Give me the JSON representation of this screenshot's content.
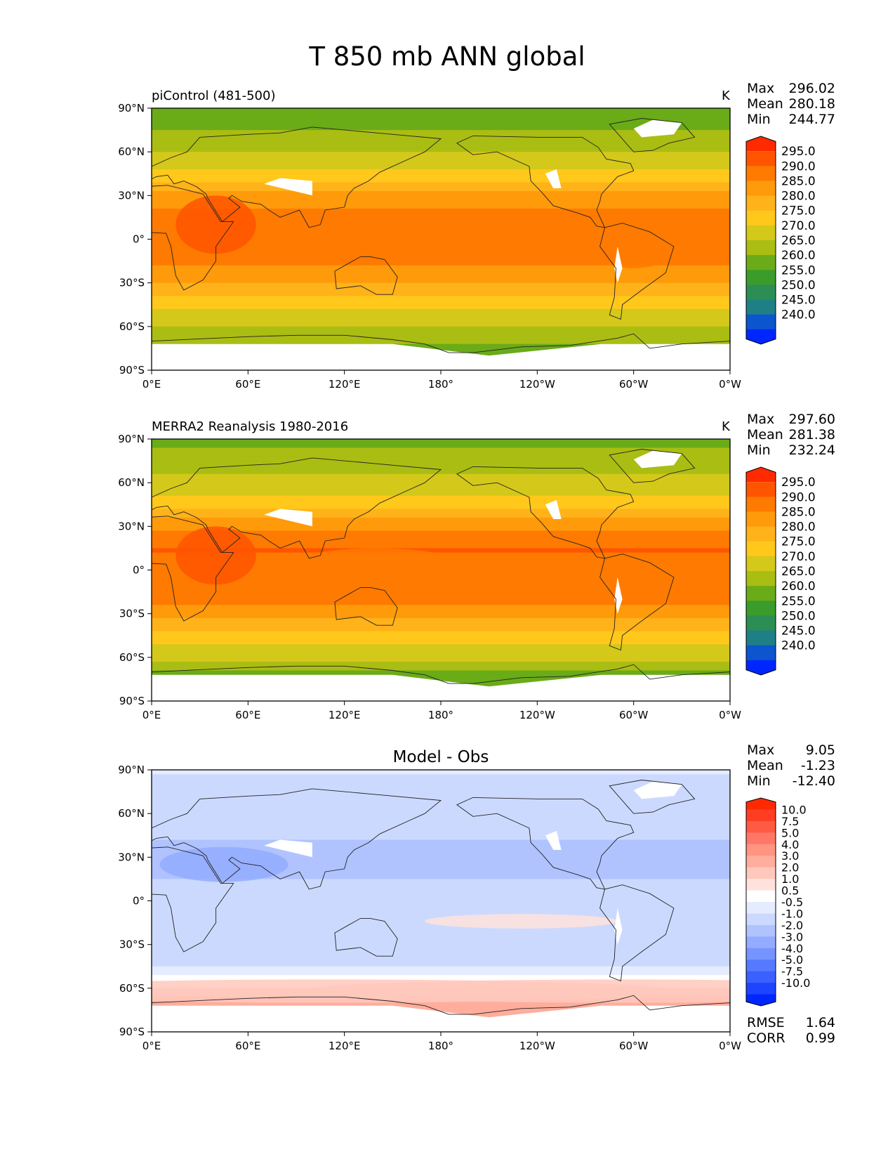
{
  "figure": {
    "title": "T 850 mb ANN global"
  },
  "axes": {
    "lat_ticks": [
      "90°N",
      "60°N",
      "30°N",
      "0°",
      "30°S",
      "60°S",
      "90°S"
    ],
    "lon_ticks": [
      "0°E",
      "60°E",
      "120°E",
      "180°",
      "120°W",
      "60°W",
      "0°W"
    ]
  },
  "panels": [
    {
      "id": "model",
      "left_title": "piControl (481-500)",
      "center_title": "",
      "units": "K",
      "stats": [
        {
          "label": "Max",
          "value": "296.02"
        },
        {
          "label": "Mean",
          "value": "280.18"
        },
        {
          "label": "Min",
          "value": "244.77"
        }
      ],
      "colorbar": {
        "labels": [
          "295.0",
          "290.0",
          "285.0",
          "280.0",
          "275.0",
          "270.0",
          "265.0",
          "260.0",
          "255.0",
          "250.0",
          "245.0",
          "240.0"
        ],
        "colors": [
          "#ff2a00",
          "#ff5500",
          "#ff7a00",
          "#ff9a0a",
          "#ffb21a",
          "#ffc81a",
          "#d4c81a",
          "#aabd12",
          "#6aab18",
          "#3a9c2a",
          "#2c8e55",
          "#1f7f86",
          "#0d55cf",
          "#0026ff"
        ]
      },
      "footer_stats": [],
      "chart_data": {
        "type": "heatmap",
        "title": "piControl (481-500)",
        "variable": "T 850 mb",
        "units": "K",
        "xlim": [
          0,
          360
        ],
        "ylim": [
          -90,
          90
        ],
        "zonal_mean_profile": [
          {
            "lat": 90,
            "value": 258
          },
          {
            "lat": 75,
            "value": 260
          },
          {
            "lat": 60,
            "value": 265
          },
          {
            "lat": 45,
            "value": 272
          },
          {
            "lat": 30,
            "value": 282
          },
          {
            "lat": 15,
            "value": 287
          },
          {
            "lat": 0,
            "value": 287
          },
          {
            "lat": -15,
            "value": 286
          },
          {
            "lat": -30,
            "value": 279
          },
          {
            "lat": -45,
            "value": 271
          },
          {
            "lat": -60,
            "value": 264
          },
          {
            "lat": -75,
            "value": 258
          }
        ],
        "summary": {
          "max": 296.02,
          "mean": 280.18,
          "min": 244.77
        }
      }
    },
    {
      "id": "obs",
      "left_title": "MERRA2 Reanalysis 1980-2016",
      "center_title": "",
      "units": "K",
      "stats": [
        {
          "label": "Max",
          "value": "297.60"
        },
        {
          "label": "Mean",
          "value": "281.38"
        },
        {
          "label": "Min",
          "value": "232.24"
        }
      ],
      "colorbar": {
        "labels": [
          "295.0",
          "290.0",
          "285.0",
          "280.0",
          "275.0",
          "270.0",
          "265.0",
          "260.0",
          "255.0",
          "250.0",
          "245.0",
          "240.0"
        ],
        "colors": [
          "#ff2a00",
          "#ff5500",
          "#ff7a00",
          "#ff9a0a",
          "#ffb21a",
          "#ffc81a",
          "#d4c81a",
          "#aabd12",
          "#6aab18",
          "#3a9c2a",
          "#2c8e55",
          "#1f7f86",
          "#0d55cf",
          "#0026ff"
        ]
      },
      "footer_stats": [],
      "chart_data": {
        "type": "heatmap",
        "title": "MERRA2 Reanalysis 1980-2016",
        "variable": "T 850 mb",
        "units": "K",
        "xlim": [
          0,
          360
        ],
        "ylim": [
          -90,
          90
        ],
        "zonal_mean_profile": [
          {
            "lat": 90,
            "value": 259
          },
          {
            "lat": 75,
            "value": 262
          },
          {
            "lat": 60,
            "value": 267
          },
          {
            "lat": 45,
            "value": 274
          },
          {
            "lat": 30,
            "value": 284
          },
          {
            "lat": 15,
            "value": 290
          },
          {
            "lat": 0,
            "value": 289
          },
          {
            "lat": -15,
            "value": 288
          },
          {
            "lat": -30,
            "value": 281
          },
          {
            "lat": -45,
            "value": 273
          },
          {
            "lat": -60,
            "value": 265
          },
          {
            "lat": -75,
            "value": 255
          }
        ],
        "summary": {
          "max": 297.6,
          "mean": 281.38,
          "min": 232.24
        }
      }
    },
    {
      "id": "diff",
      "left_title": "",
      "center_title": "Model - Obs",
      "units": "",
      "stats": [
        {
          "label": "Max",
          "value": "9.05"
        },
        {
          "label": "Mean",
          "value": "-1.23"
        },
        {
          "label": "Min",
          "value": "-12.40"
        }
      ],
      "colorbar": {
        "labels": [
          "10.0",
          "7.5",
          "5.0",
          "4.0",
          "3.0",
          "2.0",
          "1.0",
          "0.5",
          "-0.5",
          "-1.0",
          "-2.0",
          "-3.0",
          "-4.0",
          "-5.0",
          "-7.5",
          "-10.0"
        ],
        "colors": [
          "#ff2a00",
          "#ff3d22",
          "#ff5a44",
          "#ff7766",
          "#ff9480",
          "#ffad9c",
          "#ffc8bc",
          "#ffe2dc",
          "#ffffff",
          "#e6ecff",
          "#ccd9ff",
          "#b0c3ff",
          "#93acff",
          "#7594ff",
          "#567aff",
          "#3a60ff",
          "#1d45ff",
          "#0026ff"
        ]
      },
      "footer_stats": [
        {
          "label": "RMSE",
          "value": "1.64"
        },
        {
          "label": "CORR",
          "value": "0.99"
        }
      ],
      "chart_data": {
        "type": "heatmap",
        "title": "Model - Obs",
        "variable": "T 850 mb difference",
        "units": "K",
        "xlim": [
          0,
          360
        ],
        "ylim": [
          -90,
          90
        ],
        "zonal_mean_profile": [
          {
            "lat": 90,
            "value": -1.0
          },
          {
            "lat": 75,
            "value": -1.5
          },
          {
            "lat": 60,
            "value": -2.0
          },
          {
            "lat": 45,
            "value": -2.0
          },
          {
            "lat": 30,
            "value": -2.5
          },
          {
            "lat": 15,
            "value": -2.0
          },
          {
            "lat": 0,
            "value": -1.5
          },
          {
            "lat": -15,
            "value": -1.5
          },
          {
            "lat": -30,
            "value": -2.0
          },
          {
            "lat": -45,
            "value": -1.0
          },
          {
            "lat": -55,
            "value": 0.0
          },
          {
            "lat": -65,
            "value": 2.0
          },
          {
            "lat": -75,
            "value": 2.5
          }
        ],
        "summary": {
          "max": 9.05,
          "mean": -1.23,
          "min": -12.4,
          "rmse": 1.64,
          "corr": 0.99
        }
      }
    }
  ]
}
